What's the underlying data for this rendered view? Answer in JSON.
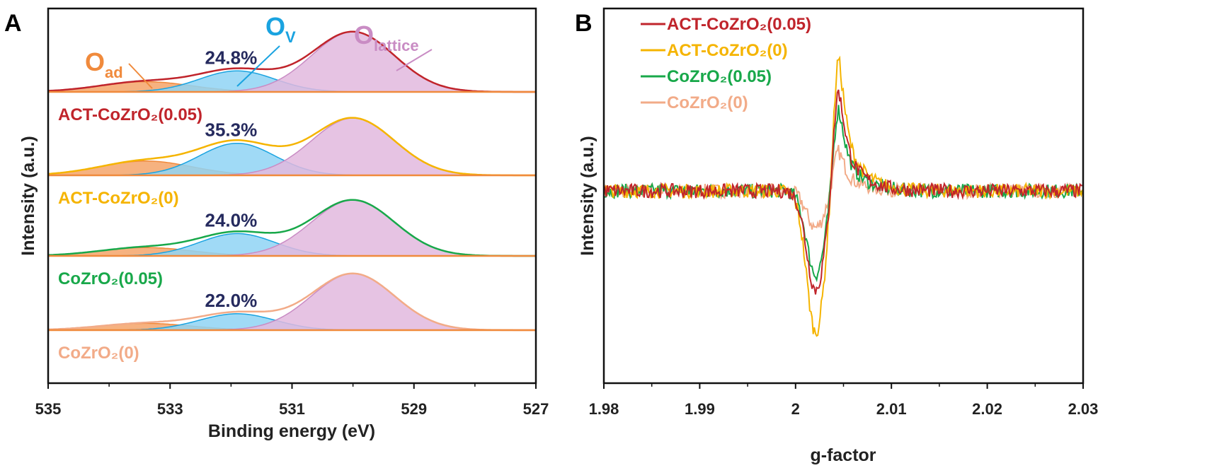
{
  "chart_data": [
    {
      "panel": "A",
      "type": "area",
      "xlabel": "Binding energy (eV)",
      "ylabel": "Intensity (a.u.)",
      "xlim": [
        535,
        527
      ],
      "x_reversed": true,
      "xticks": [
        "535",
        "533",
        "531",
        "529",
        "527"
      ],
      "grid": false,
      "components": [
        {
          "label_main": "O",
          "label_sub": "ad",
          "color": "#f08a3c",
          "fill": "#f4a46a",
          "center": 533.4,
          "sigma": 0.75
        },
        {
          "label_main": "O",
          "label_sub": "V",
          "color": "#1aa3e0",
          "fill": "#8fd3f4",
          "center": 531.9,
          "sigma": 0.62
        },
        {
          "label_main": "O",
          "label_sub": "lattice",
          "color": "#c98cc4",
          "fill": "#e2b8de",
          "center": 530.0,
          "sigma": 0.68
        }
      ],
      "series": [
        {
          "name": "ACT-CoZrO₂(0.05)",
          "color": "#c0242b",
          "ov_percent": "24.8%",
          "heights": [
            0.17,
            0.35,
            1.0
          ]
        },
        {
          "name": "ACT-CoZrO₂(0)",
          "color": "#f5b400",
          "ov_percent": "35.3%",
          "heights": [
            0.25,
            0.56,
            1.0
          ]
        },
        {
          "name": "CoZrO₂(0.05)",
          "color": "#18a84a",
          "ov_percent": "24.0%",
          "heights": [
            0.15,
            0.4,
            1.0
          ]
        },
        {
          "name": "CoZrO₂(0)",
          "color": "#f2ab88",
          "ov_percent": "22.0%",
          "heights": [
            0.12,
            0.29,
            1.0
          ]
        }
      ]
    },
    {
      "panel": "B",
      "type": "line",
      "xlabel": "g-factor",
      "ylabel": "Intensity (a.u.)",
      "xlim": [
        1.98,
        2.03
      ],
      "xticks": [
        "1.98",
        "1.99",
        "2",
        "2.01",
        "2.02",
        "2.03"
      ],
      "legend_position": "top-left",
      "grid": false,
      "series": [
        {
          "name": "ACT-CoZrO₂(0.05)",
          "color": "#c0242b",
          "g_min": 2.0021,
          "g_max": 2.0045,
          "min": -0.7,
          "max": 0.74
        },
        {
          "name": "ACT-CoZrO₂(0)",
          "color": "#f5b400",
          "g_min": 2.0021,
          "g_max": 2.0045,
          "min": -1.0,
          "max": 0.98
        },
        {
          "name": "CoZrO₂(0.05)",
          "color": "#18a84a",
          "g_min": 2.0021,
          "g_max": 2.0045,
          "min": -0.59,
          "max": 0.6
        },
        {
          "name": "CoZrO₂(0)",
          "color": "#f2ab88",
          "g_min": 2.0021,
          "g_max": 2.0045,
          "min": -0.26,
          "max": 0.29
        }
      ]
    }
  ]
}
